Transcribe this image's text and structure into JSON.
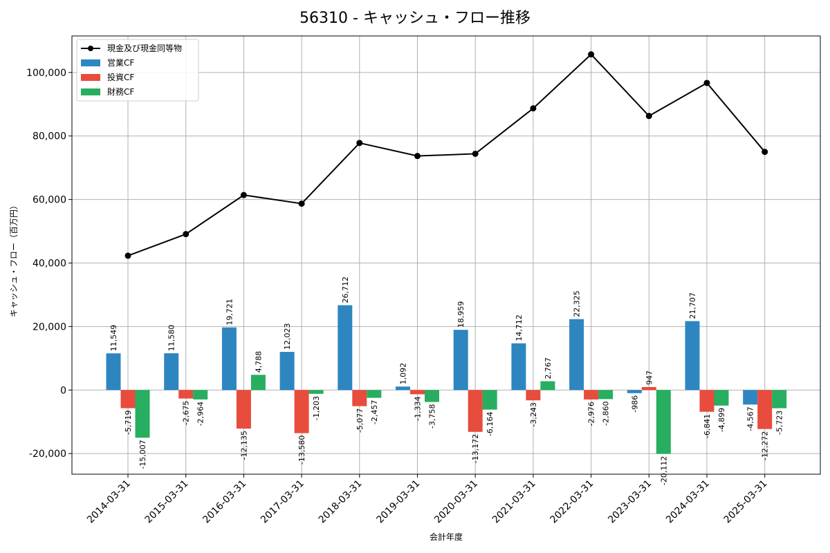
{
  "chart_data": {
    "type": "bar",
    "title": "56310 - キャッシュ・フロー推移",
    "xlabel": "会計年度",
    "ylabel": "キャッシュ・フロー（百万円）",
    "ylim": [
      -26500,
      111500
    ],
    "yticks": [
      -20000,
      0,
      20000,
      40000,
      60000,
      80000,
      100000
    ],
    "ytick_labels": [
      "-20,000",
      "0",
      "20,000",
      "40,000",
      "60,000",
      "80,000",
      "100,000"
    ],
    "grid": true,
    "legend_position": "top-left",
    "categories": [
      "2014-03-31",
      "2015-03-31",
      "2016-03-31",
      "2017-03-31",
      "2018-03-31",
      "2019-03-31",
      "2020-03-31",
      "2021-03-31",
      "2022-03-31",
      "2023-03-31",
      "2024-03-31",
      "2025-03-31"
    ],
    "series": [
      {
        "name": "営業CF",
        "type": "bar",
        "color": "#2e86c1",
        "values": [
          11549,
          11580,
          19721,
          12023,
          26712,
          1092,
          18959,
          14712,
          22325,
          -986,
          21707,
          -4567
        ],
        "labels": [
          "11,549",
          "11,580",
          "19,721",
          "12,023",
          "26,712",
          "1,092",
          "18,959",
          "14,712",
          "22,325",
          "-986",
          "21,707",
          "-4,567"
        ]
      },
      {
        "name": "投資CF",
        "type": "bar",
        "color": "#e74c3c",
        "values": [
          -5719,
          -2675,
          -12135,
          -13580,
          -5077,
          -1334,
          -13172,
          -3243,
          -2976,
          947,
          -6841,
          -12272
        ],
        "labels": [
          "-5,719",
          "-2,675",
          "-12,135",
          "-13,580",
          "-5,077",
          "-1,334",
          "-13,172",
          "-3,243",
          "-2,976",
          "947",
          "-6,841",
          "-12,272"
        ]
      },
      {
        "name": "財務CF",
        "type": "bar",
        "color": "#27ae60",
        "values": [
          -15007,
          -2964,
          4788,
          -1203,
          -2457,
          -3758,
          -6164,
          2767,
          -2860,
          -20112,
          -4899,
          -5723
        ],
        "labels": [
          "-15,007",
          "-2,964",
          "4,788",
          "-1,203",
          "-2,457",
          "-3,758",
          "-6,164",
          "2,767",
          "-2,860",
          "-20,112",
          "-4,899",
          "-5,723"
        ]
      },
      {
        "name": "現金及び現金同等物",
        "type": "line",
        "color": "#000000",
        "values": [
          42300,
          49100,
          61400,
          58700,
          77800,
          73700,
          74400,
          88700,
          105700,
          86300,
          96700,
          75000
        ]
      }
    ]
  }
}
